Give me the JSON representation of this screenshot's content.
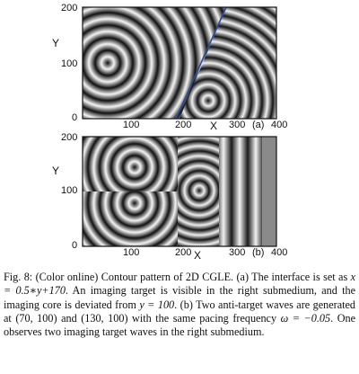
{
  "figure": {
    "panel_a": {
      "y_axis_label": "Y",
      "x_axis_label": "X",
      "y_ticks": [
        "200",
        "100",
        "0"
      ],
      "x_ticks": [
        "100",
        "200",
        "300",
        "400"
      ],
      "tag": "(a)"
    },
    "panel_b": {
      "y_axis_label": "Y",
      "x_axis_label": "X",
      "y_ticks": [
        "200",
        "100",
        "0"
      ],
      "x_ticks": [
        "100",
        "200",
        "300",
        "400"
      ],
      "tag": "(b)"
    }
  },
  "caption": {
    "fig_label": "Fig. 8:",
    "t1": "(Color online) Contour pattern of 2D CGLE. (a) The interface is set as ",
    "m1": "x = 0.5∗y+170",
    "t2": ". An imaging target is visible in the right submedium, and the imaging core is deviated from ",
    "m2": "y = 100",
    "t3": ". (b) Two anti-target waves are generated at (70, 100) and (130, 100) with the same pacing frequency ",
    "m3": "ω = −0.05",
    "t4": ". One observes two imaging target waves in the right submedium."
  }
}
